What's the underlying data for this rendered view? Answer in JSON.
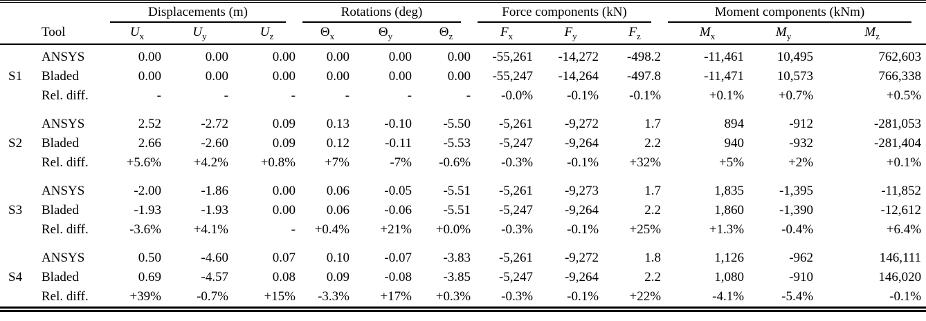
{
  "table": {
    "group_headers": [
      {
        "label": "Displacements (m)"
      },
      {
        "label": "Rotations (deg)"
      },
      {
        "label": "Force components (kN)"
      },
      {
        "label": "Moment components (kNm)"
      }
    ],
    "tool_header": "Tool",
    "columns": [
      {
        "base": "U",
        "sub": "x"
      },
      {
        "base": "U",
        "sub": "y"
      },
      {
        "base": "U",
        "sub": "z"
      },
      {
        "base": "Θ",
        "sub": "x"
      },
      {
        "base": "Θ",
        "sub": "y"
      },
      {
        "base": "Θ",
        "sub": "z"
      },
      {
        "base": "F",
        "sub": "x"
      },
      {
        "base": "F",
        "sub": "y"
      },
      {
        "base": "F",
        "sub": "z"
      },
      {
        "base": "M",
        "sub": "x"
      },
      {
        "base": "M",
        "sub": "y"
      },
      {
        "base": "M",
        "sub": "z"
      }
    ],
    "sections": [
      {
        "label": "S1",
        "rows": [
          {
            "tool": "ANSYS",
            "values": [
              "0.00",
              "0.00",
              "0.00",
              "0.00",
              "0.00",
              "0.00",
              "-55,261",
              "-14,272",
              "-498.2",
              "-11,461",
              "10,495",
              "762,603"
            ]
          },
          {
            "tool": "Bladed",
            "values": [
              "0.00",
              "0.00",
              "0.00",
              "0.00",
              "0.00",
              "0.00",
              "-55,247",
              "-14,264",
              "-497.8",
              "-11,471",
              "10,573",
              "766,338"
            ]
          },
          {
            "tool": "Rel. diff.",
            "values": [
              "-",
              "-",
              "-",
              "-",
              "-",
              "-",
              "-0.0%",
              "-0.1%",
              "-0.1%",
              "+0.1%",
              "+0.7%",
              "+0.5%"
            ]
          }
        ]
      },
      {
        "label": "S2",
        "rows": [
          {
            "tool": "ANSYS",
            "values": [
              "2.52",
              "-2.72",
              "0.09",
              "0.13",
              "-0.10",
              "-5.50",
              "-5,261",
              "-9,272",
              "1.7",
              "894",
              "-912",
              "-281,053"
            ]
          },
          {
            "tool": "Bladed",
            "values": [
              "2.66",
              "-2.60",
              "0.09",
              "0.12",
              "-0.11",
              "-5.53",
              "-5,247",
              "-9,264",
              "2.2",
              "940",
              "-932",
              "-281,404"
            ]
          },
          {
            "tool": "Rel. diff.",
            "values": [
              "+5.6%",
              "+4.2%",
              "+0.8%",
              "+7%",
              "-7%",
              "-0.6%",
              "-0.3%",
              "-0.1%",
              "+32%",
              "+5%",
              "+2%",
              "+0.1%"
            ]
          }
        ]
      },
      {
        "label": "S3",
        "rows": [
          {
            "tool": "ANSYS",
            "values": [
              "-2.00",
              "-1.86",
              "0.00",
              "0.06",
              "-0.05",
              "-5.51",
              "-5,261",
              "-9,273",
              "1.7",
              "1,835",
              "-1,395",
              "-11,852"
            ]
          },
          {
            "tool": "Bladed",
            "values": [
              "-1.93",
              "-1.93",
              "0.00",
              "0.06",
              "-0.06",
              "-5.51",
              "-5,247",
              "-9,264",
              "2.2",
              "1,860",
              "-1,390",
              "-12,612"
            ]
          },
          {
            "tool": "Rel. diff.",
            "values": [
              "-3.6%",
              "+4.1%",
              "-",
              "+0.4%",
              "+21%",
              "+0.0%",
              "-0.3%",
              "-0.1%",
              "+25%",
              "+1.3%",
              "-0.4%",
              "+6.4%"
            ]
          }
        ]
      },
      {
        "label": "S4",
        "rows": [
          {
            "tool": "ANSYS",
            "values": [
              "0.50",
              "-4.60",
              "0.07",
              "0.10",
              "-0.07",
              "-3.83",
              "-5,261",
              "-9,272",
              "1.8",
              "1,126",
              "-962",
              "146,111"
            ]
          },
          {
            "tool": "Bladed",
            "values": [
              "0.69",
              "-4.57",
              "0.08",
              "0.09",
              "-0.08",
              "-3.85",
              "-5,247",
              "-9,264",
              "2.2",
              "1,080",
              "-910",
              "146,020"
            ]
          },
          {
            "tool": "Rel. diff.",
            "values": [
              "+39%",
              "-0.7%",
              "+15%",
              "-3.3%",
              "+17%",
              "+0.3%",
              "-0.3%",
              "-0.1%",
              "+22%",
              "-4.1%",
              "-5.4%",
              "-0.1%"
            ]
          }
        ]
      }
    ]
  }
}
